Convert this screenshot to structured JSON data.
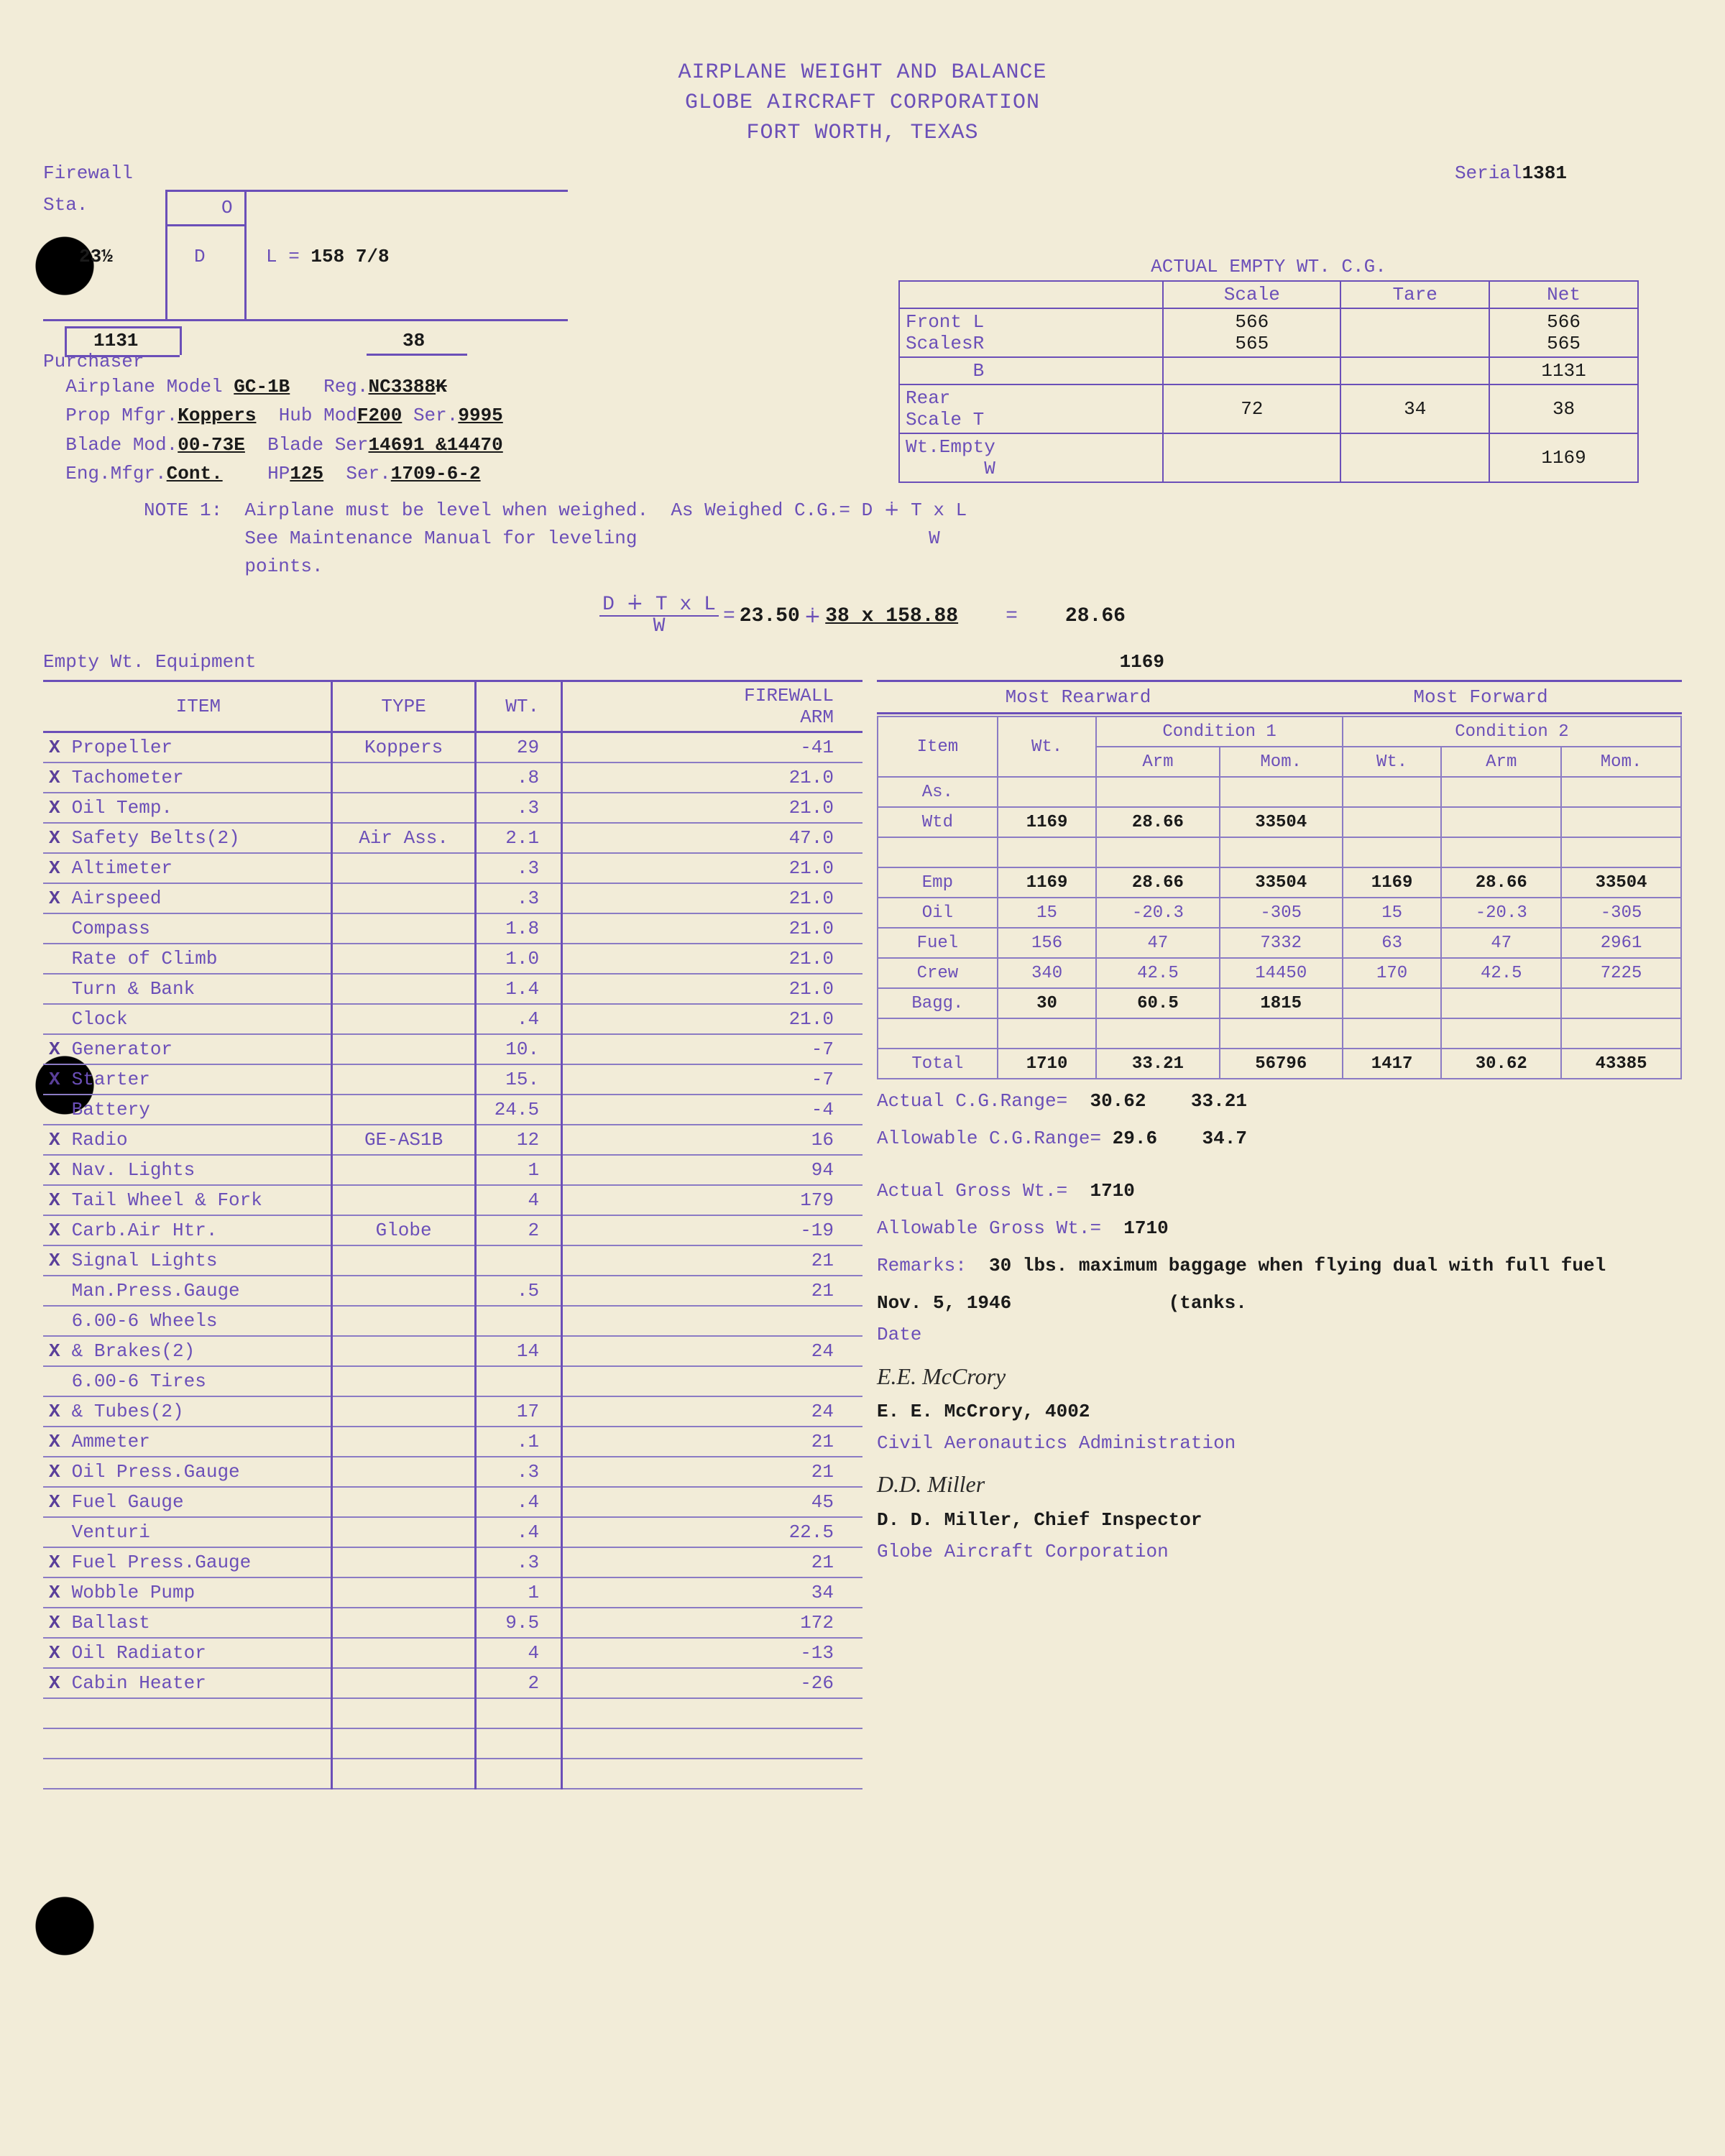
{
  "header": {
    "l1": "AIRPLANE WEIGHT AND BALANCE",
    "l2": "GLOBE AIRCRAFT CORPORATION",
    "l3": "FORT WORTH, TEXAS"
  },
  "serial_label": "Serial",
  "serial_value": "1381",
  "firewall": {
    "label": "Firewall",
    "sta": "Sta.",
    "sta_val": "23½",
    "d": "D",
    "o": "O",
    "l_label": "L =",
    "l_val": "158 7/8",
    "bottom_left": "1131",
    "bottom_right": "38"
  },
  "actual_title": "ACTUAL EMPTY WT. C.G.",
  "actual": {
    "cols": [
      "",
      "Scale",
      "Tare",
      "Net"
    ],
    "rows": [
      {
        "lab": "Front L\nScalesR",
        "scale": "566\n565",
        "tare": "",
        "net": "566\n565"
      },
      {
        "lab": "      B",
        "scale": "",
        "tare": "",
        "net": "1131"
      },
      {
        "lab": "Rear\nScale T",
        "scale": "72",
        "tare": "34",
        "net": "38"
      },
      {
        "lab": "Wt.Empty\n       W",
        "scale": "",
        "tare": "",
        "net": "1169"
      }
    ]
  },
  "purchaser": {
    "label": "Purchaser",
    "model_lab": "Airplane Model",
    "model": "GC-1B",
    "reg_lab": "Reg.",
    "reg": "NC3388",
    "reg_suffix": "K",
    "prop_lab": "Prop Mfgr.",
    "prop": "Koppers",
    "hub_lab": "Hub Mod",
    "hub": "F200",
    "ser_lab": "Ser.",
    "ser1": "9995",
    "blade_lab": "Blade Mod.",
    "blade": "00-73E",
    "bser_lab": "Blade Ser",
    "bser": "14691 &14470",
    "eng_lab": "Eng.Mfgr.",
    "eng": "Cont.",
    "hp_lab": "HP",
    "hp": "125",
    "eser_lab": "Ser.",
    "eser": "1709-6-2"
  },
  "note1": "NOTE 1:  Airplane must be level when weighed.  As Weighed C.G.= D ∔ T x L\n         See Maintenance Manual for leveling                          W\n         points.",
  "eq": {
    "lhs": "D ∔ T x L",
    "w": "W",
    "eq": "=",
    "d": "23.50",
    "pm": "∔",
    "num": "38 x 158.88",
    "res": "28.66"
  },
  "empty_wt_label": "Empty Wt. Equipment",
  "empty_wt_val": "1169",
  "equip_headers": [
    "",
    "ITEM",
    "TYPE",
    "WT.",
    "FIREWALL\nARM"
  ],
  "equip": [
    {
      "x": "X",
      "item": "Propeller",
      "type": "Koppers",
      "wt": "29",
      "arm": "-41"
    },
    {
      "x": "X",
      "item": "Tachometer",
      "type": "",
      "wt": ".8",
      "arm": "21.0"
    },
    {
      "x": "X",
      "item": "Oil Temp.",
      "type": "",
      "wt": ".3",
      "arm": "21.0"
    },
    {
      "x": "X",
      "item": "Safety Belts(2)",
      "type": "Air Ass.",
      "wt": "2.1",
      "arm": "47.0"
    },
    {
      "x": "X",
      "item": "Altimeter",
      "type": "",
      "wt": ".3",
      "arm": "21.0"
    },
    {
      "x": "X",
      "item": "Airspeed",
      "type": "",
      "wt": ".3",
      "arm": "21.0"
    },
    {
      "x": "",
      "item": "Compass",
      "type": "",
      "wt": "1.8",
      "arm": "21.0"
    },
    {
      "x": "",
      "item": "Rate of Climb",
      "type": "",
      "wt": "1.0",
      "arm": "21.0"
    },
    {
      "x": "",
      "item": "Turn & Bank",
      "type": "",
      "wt": "1.4",
      "arm": "21.0"
    },
    {
      "x": "",
      "item": "Clock",
      "type": "",
      "wt": ".4",
      "arm": "21.0"
    },
    {
      "x": "X",
      "item": "Generator",
      "type": "",
      "wt": "10.",
      "arm": "-7"
    },
    {
      "x": "X",
      "item": "Starter",
      "type": "",
      "wt": "15.",
      "arm": "-7"
    },
    {
      "x": "",
      "item": "Battery",
      "type": "",
      "wt": "24.5",
      "arm": "-4"
    },
    {
      "x": "X",
      "item": "Radio",
      "type": "GE-AS1B",
      "wt": "12",
      "arm": "16"
    },
    {
      "x": "X",
      "item": "Nav. Lights",
      "type": "",
      "wt": "1",
      "arm": "94"
    },
    {
      "x": "X",
      "item": "Tail Wheel & Fork",
      "type": "",
      "wt": "4",
      "arm": "179"
    },
    {
      "x": "X",
      "item": "Carb.Air Htr.",
      "type": "Globe",
      "wt": "2",
      "arm": "-19"
    },
    {
      "x": "X",
      "item": "Signal Lights",
      "type": "",
      "wt": "",
      "arm": "21"
    },
    {
      "x": "",
      "item": "Man.Press.Gauge",
      "type": "",
      "wt": ".5",
      "arm": "21"
    },
    {
      "x": "",
      "item": "6.00-6 Wheels",
      "type": "",
      "wt": "",
      "arm": ""
    },
    {
      "x": "X",
      "item": "& Brakes(2)",
      "type": "",
      "wt": "14",
      "arm": "24"
    },
    {
      "x": "",
      "item": "6.00-6 Tires",
      "type": "",
      "wt": "",
      "arm": ""
    },
    {
      "x": "X",
      "item": "& Tubes(2)",
      "type": "",
      "wt": "17",
      "arm": "24"
    },
    {
      "x": "X",
      "item": "Ammeter",
      "type": "",
      "wt": ".1",
      "arm": "21"
    },
    {
      "x": "X",
      "item": "Oil Press.Gauge",
      "type": "",
      "wt": ".3",
      "arm": "21"
    },
    {
      "x": "X",
      "item": "Fuel Gauge",
      "type": "",
      "wt": ".4",
      "arm": "45"
    },
    {
      "x": "",
      "item": "Venturi",
      "type": "",
      "wt": ".4",
      "arm": "22.5"
    },
    {
      "x": "X",
      "item": "Fuel Press.Gauge",
      "type": "",
      "wt": ".3",
      "arm": "21"
    },
    {
      "x": "X",
      "item": "Wobble Pump",
      "type": "",
      "wt": "1",
      "arm": "34"
    },
    {
      "x": "X",
      "item": "Ballast",
      "type": "",
      "wt": "9.5",
      "arm": "172"
    },
    {
      "x": "X",
      "item": "Oil Radiator",
      "type": "",
      "wt": "4",
      "arm": "-13"
    },
    {
      "x": "X",
      "item": "Cabin Heater",
      "type": "",
      "wt": "2",
      "arm": "-26"
    },
    {
      "x": "",
      "item": "",
      "type": "",
      "wt": "",
      "arm": ""
    },
    {
      "x": "",
      "item": "",
      "type": "",
      "wt": "",
      "arm": ""
    },
    {
      "x": "",
      "item": "",
      "type": "",
      "wt": "",
      "arm": ""
    }
  ],
  "cond_top": {
    "left": "Most Rearward",
    "right": "Most Forward"
  },
  "cond_headers": {
    "r1": [
      "Item",
      "Wt.",
      "Condition 1",
      "Condition 2"
    ],
    "r2": [
      "",
      "",
      "Arm",
      "Mom.",
      "Wt.",
      "Arm",
      "Mom."
    ]
  },
  "cond_rows": [
    {
      "item": "As.",
      "c": [
        "",
        "",
        "",
        "",
        "",
        ""
      ]
    },
    {
      "item": "Wtd",
      "c": [
        "1169",
        "28.66",
        "33504",
        "",
        "",
        ""
      ]
    },
    {
      "item": "",
      "c": [
        "",
        "",
        "",
        "",
        "",
        ""
      ]
    },
    {
      "item": "Emp",
      "c": [
        "1169",
        "28.66",
        "33504",
        "1169",
        "28.66",
        "33504"
      ]
    },
    {
      "item": "Oil",
      "c": [
        "15",
        "-20.3",
        "-305",
        "15",
        "-20.3",
        "-305"
      ]
    },
    {
      "item": "Fuel",
      "c": [
        "156",
        "47",
        "7332",
        "63",
        "47",
        "2961"
      ]
    },
    {
      "item": "Crew",
      "c": [
        "340",
        "42.5",
        "14450",
        "170",
        "42.5",
        "7225"
      ]
    },
    {
      "item": "Bagg.",
      "c": [
        "30",
        "60.5",
        "1815",
        "",
        "",
        ""
      ]
    },
    {
      "item": "",
      "c": [
        "",
        "",
        "",
        "",
        "",
        ""
      ]
    },
    {
      "item": "Total",
      "c": [
        "1710",
        "33.21",
        "56796",
        "1417",
        "30.62",
        "43385"
      ]
    }
  ],
  "actual_cg": {
    "label": "Actual C.G.Range=",
    "v1": "30.62",
    "v2": "33.21"
  },
  "allow_cg": {
    "label": "Allowable C.G.Range=",
    "v1": "29.6",
    "v2": "34.7"
  },
  "actual_gross": {
    "label": "Actual Gross Wt.=",
    "v": "1710"
  },
  "allow_gross": {
    "label": "Allowable Gross Wt.=",
    "v": "1710"
  },
  "remarks": {
    "label": "Remarks:",
    "text": "30 lbs. maximum baggage when flying dual with full fuel",
    "tail": "(tanks."
  },
  "date": {
    "label": "Date",
    "v": "Nov. 5, 1946"
  },
  "sig1": {
    "script": "E.E. McCrory",
    "name": "E. E. McCrory, 4002",
    "org": "Civil Aeronautics Administration"
  },
  "sig2": {
    "script": "D.D. Miller",
    "name": "D. D. Miller, Chief Inspector",
    "org": "Globe Aircraft Corporation"
  },
  "colors": {
    "purple": "#6b4fb8",
    "black": "#1a1a1a",
    "paper": "#f2ecd8",
    "rule": "#8b7bc4"
  }
}
